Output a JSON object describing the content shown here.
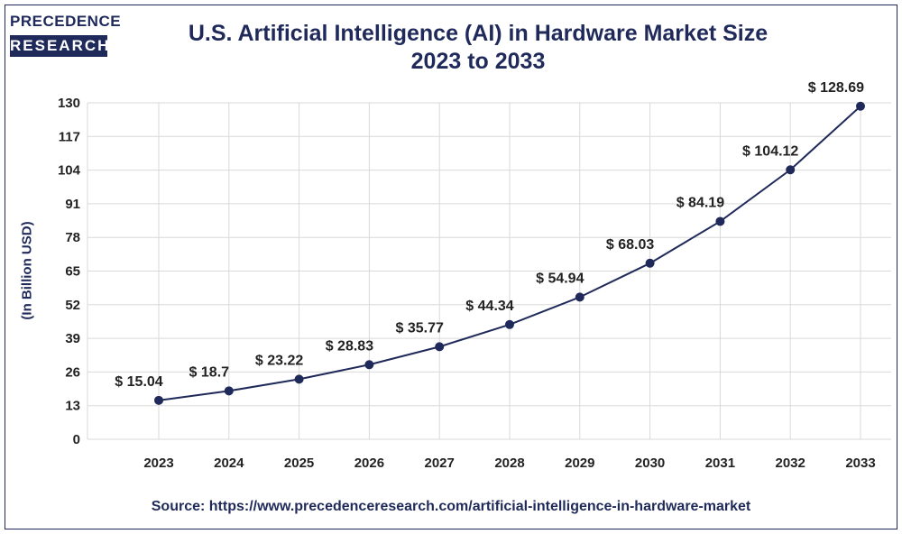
{
  "logo": {
    "line1": "PRECEDENCE",
    "line2": "RESEARCH"
  },
  "colors": {
    "primary": "#1f2a5a",
    "grid": "#d9d9d9"
  },
  "source": "Source: https://www.precedenceresearch.com/artificial-intelligence-in-hardware-market",
  "chart_data": {
    "type": "line",
    "title": "U.S. Artificial Intelligence (AI) in Hardware Market Size",
    "subtitle": "2023 to 2033",
    "xlabel": "",
    "ylabel": "(In Billion USD)",
    "categories": [
      "2023",
      "2024",
      "2025",
      "2026",
      "2027",
      "2028",
      "2029",
      "2030",
      "2031",
      "2032",
      "2033"
    ],
    "values": [
      15.04,
      18.7,
      23.22,
      28.83,
      35.77,
      44.34,
      54.94,
      68.03,
      84.19,
      104.12,
      128.69
    ],
    "data_labels": [
      "$ 15.04",
      "$ 18.7",
      "$ 23.22",
      "$ 28.83",
      "$ 35.77",
      "$ 44.34",
      "$ 54.94",
      "$ 68.03",
      "$ 84.19",
      "$ 104.12",
      "$ 128.69"
    ],
    "y_ticks": [
      0,
      13,
      26,
      39,
      52,
      65,
      78,
      91,
      104,
      117,
      130
    ],
    "ylim": [
      0,
      130
    ],
    "grid": true,
    "legend": "none"
  }
}
